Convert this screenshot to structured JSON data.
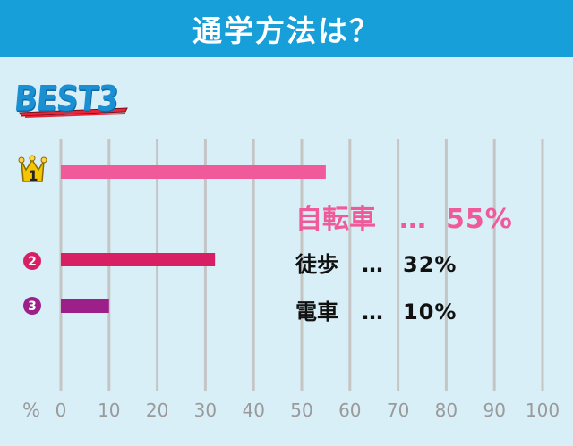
{
  "title": "通学方法は？",
  "badge_text": "BEST3",
  "axis_unit": "%",
  "colors": {
    "title_bg": "#169fd9",
    "background": "#d8eff8",
    "grid": "#c5c5c5",
    "rank1": "#f0599a",
    "rank2": "#d91f63",
    "rank3": "#9c1f8a",
    "crown": "#f5c500"
  },
  "labels": [
    {
      "name": "自転車",
      "dots": "…",
      "value": "55%"
    },
    {
      "name": "徒歩",
      "dots": "…",
      "value": "32%"
    },
    {
      "name": "電車",
      "dots": "…",
      "value": "10%"
    }
  ],
  "chart_data": {
    "type": "bar",
    "orientation": "horizontal",
    "categories": [
      "自転車",
      "徒歩",
      "電車"
    ],
    "values": [
      55,
      32,
      10
    ],
    "ranks": [
      "1",
      "2",
      "3"
    ],
    "xlim": [
      0,
      100
    ],
    "xticks": [
      "0",
      "10",
      "20",
      "30",
      "40",
      "50",
      "60",
      "70",
      "80",
      "90",
      "100"
    ],
    "xlabel": "%",
    "grid": true
  }
}
